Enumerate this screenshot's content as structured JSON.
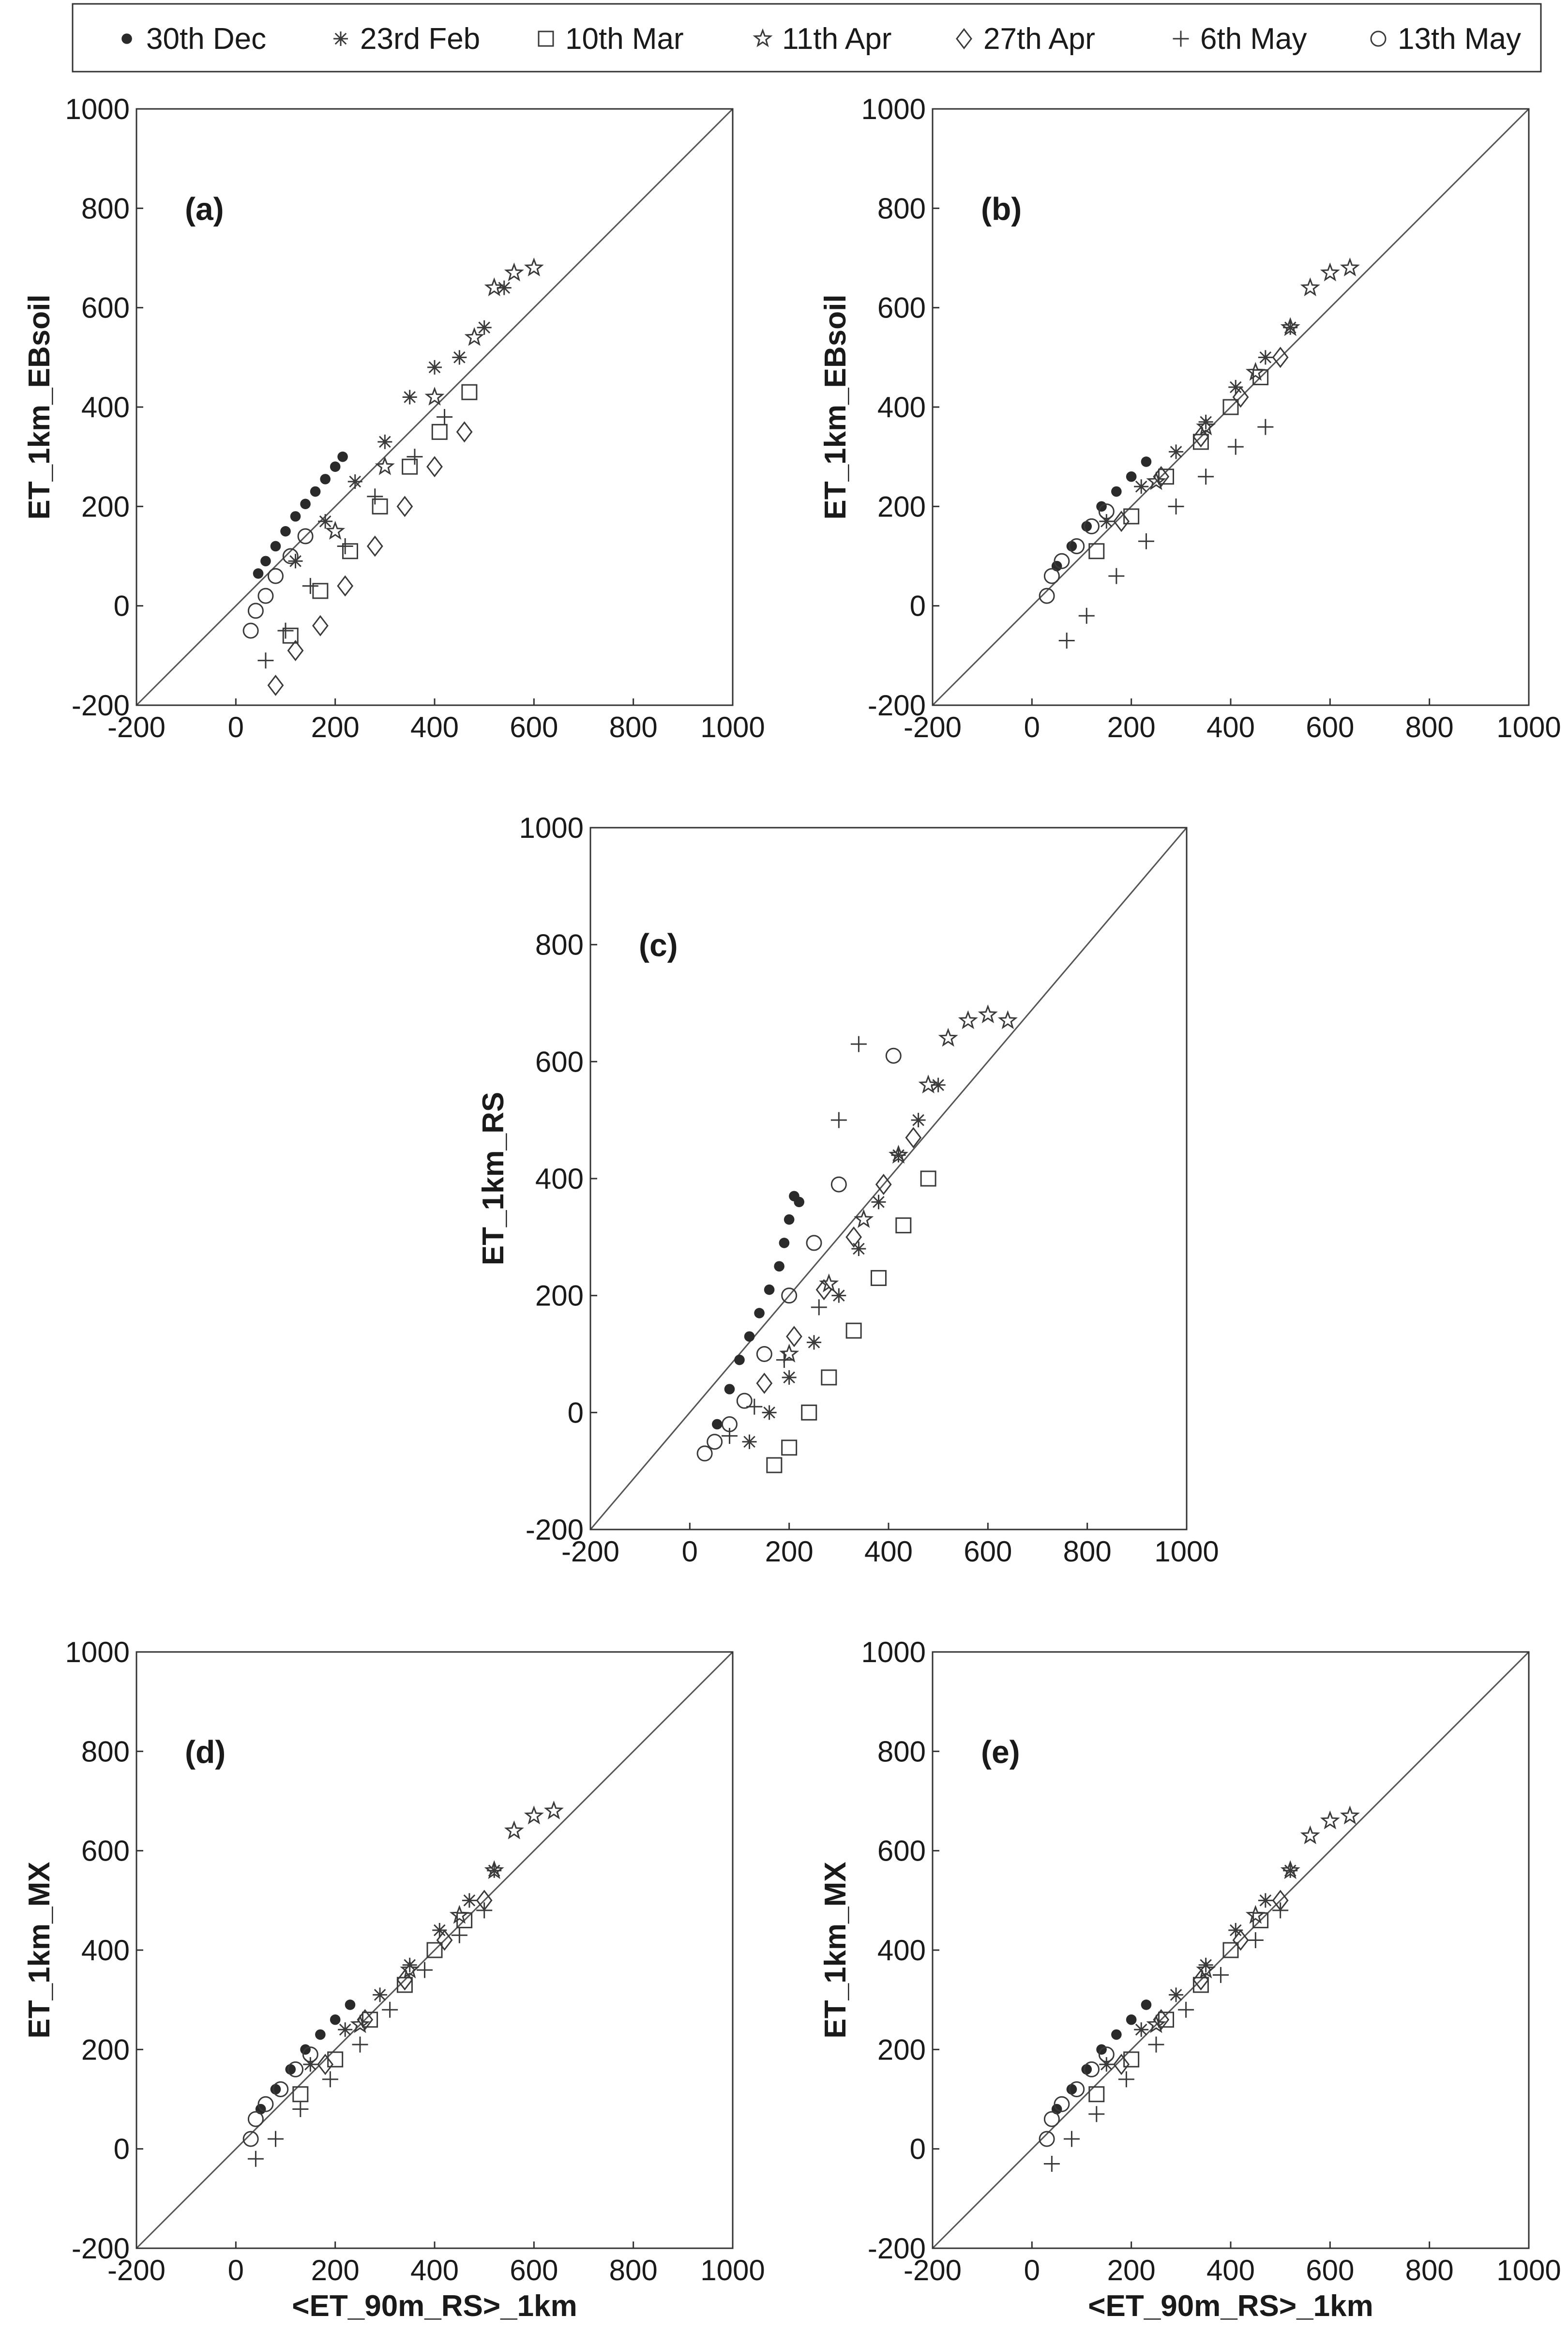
{
  "legend": {
    "entries": [
      {
        "label": "30th Dec",
        "marker": "filled-dot"
      },
      {
        "label": "23rd Feb",
        "marker": "asterisk"
      },
      {
        "label": "10th Mar",
        "marker": "square"
      },
      {
        "label": "11th Apr",
        "marker": "star"
      },
      {
        "label": "27th Apr",
        "marker": "diamond"
      },
      {
        "label": "6th May",
        "marker": "plus"
      },
      {
        "label": "13th May",
        "marker": "circle"
      }
    ]
  },
  "colors": {
    "marker": "#3a3a3a",
    "dot": "#2a2a2a",
    "axis": "#333333",
    "one_to_one": "#555555"
  },
  "chart_data": [
    {
      "type": "scatter",
      "panel": "(a)",
      "ylabel": "ET_1km_EBsoil",
      "xlabel": "",
      "xlim": [
        -200,
        1000
      ],
      "ylim": [
        -200,
        1000
      ],
      "xticks": [
        "-200",
        "0",
        "200",
        "400",
        "600",
        "800",
        "1000"
      ],
      "yticks": [
        "-200",
        "0",
        "200",
        "400",
        "600",
        "800",
        "1000"
      ],
      "one_to_one_line": true,
      "series": [
        {
          "name": "30th Dec",
          "x": [
            45,
            60,
            80,
            100,
            120,
            140,
            160,
            180,
            200,
            215
          ],
          "y": [
            65,
            90,
            120,
            150,
            180,
            205,
            230,
            255,
            280,
            300
          ]
        },
        {
          "name": "23rd Feb",
          "x": [
            120,
            180,
            240,
            300,
            350,
            400,
            450,
            500,
            540
          ],
          "y": [
            90,
            170,
            250,
            330,
            420,
            480,
            500,
            560,
            640
          ]
        },
        {
          "name": "10th Mar",
          "x": [
            110,
            170,
            230,
            290,
            350,
            410,
            470
          ],
          "y": [
            -60,
            30,
            110,
            200,
            280,
            350,
            430
          ]
        },
        {
          "name": "11th Apr",
          "x": [
            200,
            300,
            400,
            480,
            520,
            560,
            600
          ],
          "y": [
            150,
            280,
            420,
            540,
            640,
            670,
            680
          ]
        },
        {
          "name": "27th Apr",
          "x": [
            80,
            120,
            170,
            220,
            280,
            340,
            400,
            460
          ],
          "y": [
            -160,
            -90,
            -40,
            40,
            120,
            200,
            280,
            350
          ]
        },
        {
          "name": "6th May",
          "x": [
            60,
            100,
            150,
            220,
            280,
            360,
            420
          ],
          "y": [
            -110,
            -50,
            40,
            120,
            220,
            300,
            380
          ]
        },
        {
          "name": "13th May",
          "x": [
            30,
            40,
            60,
            80,
            110,
            140
          ],
          "y": [
            -50,
            -10,
            20,
            60,
            100,
            140
          ]
        }
      ]
    },
    {
      "type": "scatter",
      "panel": "(b)",
      "ylabel": "ET_1km_EBsoil",
      "xlabel": "",
      "xlim": [
        -200,
        1000
      ],
      "ylim": [
        -200,
        1000
      ],
      "xticks": [
        "-200",
        "0",
        "200",
        "400",
        "600",
        "800",
        "1000"
      ],
      "yticks": [
        "-200",
        "0",
        "200",
        "400",
        "600",
        "800",
        "1000"
      ],
      "one_to_one_line": true,
      "series": [
        {
          "name": "30th Dec",
          "x": [
            50,
            80,
            110,
            140,
            170,
            200,
            230
          ],
          "y": [
            80,
            120,
            160,
            200,
            230,
            260,
            290
          ]
        },
        {
          "name": "23rd Feb",
          "x": [
            150,
            220,
            290,
            350,
            410,
            470,
            520
          ],
          "y": [
            170,
            240,
            310,
            370,
            440,
            500,
            560
          ]
        },
        {
          "name": "10th Mar",
          "x": [
            130,
            200,
            270,
            340,
            400,
            460
          ],
          "y": [
            110,
            180,
            260,
            330,
            400,
            460
          ]
        },
        {
          "name": "11th Apr",
          "x": [
            250,
            350,
            450,
            520,
            560,
            600,
            640
          ],
          "y": [
            250,
            360,
            470,
            560,
            640,
            670,
            680
          ]
        },
        {
          "name": "27th Apr",
          "x": [
            180,
            260,
            340,
            420,
            500
          ],
          "y": [
            170,
            260,
            340,
            420,
            500
          ]
        },
        {
          "name": "6th May",
          "x": [
            70,
            110,
            170,
            230,
            290,
            350,
            410,
            470
          ],
          "y": [
            -70,
            -20,
            60,
            130,
            200,
            260,
            320,
            360
          ]
        },
        {
          "name": "13th May",
          "x": [
            30,
            40,
            60,
            90,
            120,
            150
          ],
          "y": [
            20,
            60,
            90,
            120,
            160,
            190
          ]
        }
      ]
    },
    {
      "type": "scatter",
      "panel": "(c)",
      "ylabel": "ET_1km_RS",
      "xlabel": "",
      "xlim": [
        -200,
        1000
      ],
      "ylim": [
        -200,
        1000
      ],
      "xticks": [
        "-200",
        "0",
        "200",
        "400",
        "600",
        "800",
        "1000"
      ],
      "yticks": [
        "-200",
        "0",
        "200",
        "400",
        "600",
        "800",
        "1000"
      ],
      "one_to_one_line": true,
      "series": [
        {
          "name": "30th Dec",
          "x": [
            55,
            80,
            100,
            120,
            140,
            160,
            180,
            190,
            200,
            210,
            220
          ],
          "y": [
            -20,
            40,
            90,
            130,
            170,
            210,
            250,
            290,
            330,
            370,
            360
          ]
        },
        {
          "name": "23rd Feb",
          "x": [
            120,
            160,
            200,
            250,
            300,
            340,
            380,
            420,
            460,
            500
          ],
          "y": [
            -50,
            0,
            60,
            120,
            200,
            280,
            360,
            440,
            500,
            560
          ]
        },
        {
          "name": "10th Mar",
          "x": [
            170,
            200,
            240,
            280,
            330,
            380,
            430,
            480
          ],
          "y": [
            -90,
            -60,
            0,
            60,
            140,
            230,
            320,
            400
          ]
        },
        {
          "name": "11th Apr",
          "x": [
            200,
            280,
            350,
            420,
            480,
            520,
            560,
            600,
            640
          ],
          "y": [
            100,
            220,
            330,
            440,
            560,
            640,
            670,
            680,
            670
          ]
        },
        {
          "name": "27th Apr",
          "x": [
            150,
            210,
            270,
            330,
            390,
            450
          ],
          "y": [
            50,
            130,
            210,
            300,
            390,
            470
          ]
        },
        {
          "name": "6th May",
          "x": [
            80,
            130,
            190,
            260,
            300,
            340
          ],
          "y": [
            -40,
            10,
            90,
            180,
            500,
            630
          ]
        },
        {
          "name": "13th May",
          "x": [
            30,
            50,
            80,
            110,
            150,
            200,
            250,
            300,
            410
          ],
          "y": [
            -70,
            -50,
            -20,
            20,
            100,
            200,
            290,
            390,
            610
          ]
        }
      ]
    },
    {
      "type": "scatter",
      "panel": "(d)",
      "ylabel": "ET_1km_MX",
      "xlabel": "<ET_90m_RS>_1km",
      "xlim": [
        -200,
        1000
      ],
      "ylim": [
        -200,
        1000
      ],
      "xticks": [
        "-200",
        "0",
        "200",
        "400",
        "600",
        "800",
        "1000"
      ],
      "yticks": [
        "-200",
        "0",
        "200",
        "400",
        "600",
        "800",
        "1000"
      ],
      "one_to_one_line": true,
      "series": [
        {
          "name": "30th Dec",
          "x": [
            50,
            80,
            110,
            140,
            170,
            200,
            230
          ],
          "y": [
            80,
            120,
            160,
            200,
            230,
            260,
            290
          ]
        },
        {
          "name": "23rd Feb",
          "x": [
            150,
            220,
            290,
            350,
            410,
            470,
            520
          ],
          "y": [
            170,
            240,
            310,
            370,
            440,
            500,
            560
          ]
        },
        {
          "name": "10th Mar",
          "x": [
            130,
            200,
            270,
            340,
            400,
            460
          ],
          "y": [
            110,
            180,
            260,
            330,
            400,
            460
          ]
        },
        {
          "name": "11th Apr",
          "x": [
            250,
            350,
            450,
            520,
            560,
            600,
            640
          ],
          "y": [
            250,
            360,
            470,
            560,
            640,
            670,
            680
          ]
        },
        {
          "name": "27th Apr",
          "x": [
            180,
            260,
            340,
            420,
            500
          ],
          "y": [
            170,
            260,
            340,
            420,
            500
          ]
        },
        {
          "name": "6th May",
          "x": [
            40,
            80,
            130,
            190,
            250,
            310,
            380,
            450,
            500
          ],
          "y": [
            -20,
            20,
            80,
            140,
            210,
            280,
            360,
            430,
            480
          ]
        },
        {
          "name": "13th May",
          "x": [
            30,
            40,
            60,
            90,
            120,
            150
          ],
          "y": [
            20,
            60,
            90,
            120,
            160,
            190
          ]
        }
      ]
    },
    {
      "type": "scatter",
      "panel": "(e)",
      "ylabel": "ET_1km_MX",
      "xlabel": "<ET_90m_RS>_1km",
      "xlim": [
        -200,
        1000
      ],
      "ylim": [
        -200,
        1000
      ],
      "xticks": [
        "-200",
        "0",
        "200",
        "400",
        "600",
        "800",
        "1000"
      ],
      "yticks": [
        "-200",
        "0",
        "200",
        "400",
        "600",
        "800",
        "1000"
      ],
      "one_to_one_line": true,
      "series": [
        {
          "name": "30th Dec",
          "x": [
            50,
            80,
            110,
            140,
            170,
            200,
            230
          ],
          "y": [
            80,
            120,
            160,
            200,
            230,
            260,
            290
          ]
        },
        {
          "name": "23rd Feb",
          "x": [
            150,
            220,
            290,
            350,
            410,
            470,
            520
          ],
          "y": [
            170,
            240,
            310,
            370,
            440,
            500,
            560
          ]
        },
        {
          "name": "10th Mar",
          "x": [
            130,
            200,
            270,
            340,
            400,
            460
          ],
          "y": [
            110,
            180,
            260,
            330,
            400,
            460
          ]
        },
        {
          "name": "11th Apr",
          "x": [
            250,
            350,
            450,
            520,
            560,
            600,
            640
          ],
          "y": [
            250,
            360,
            470,
            560,
            630,
            660,
            670
          ]
        },
        {
          "name": "27th Apr",
          "x": [
            180,
            260,
            340,
            420,
            500
          ],
          "y": [
            170,
            260,
            340,
            420,
            500
          ]
        },
        {
          "name": "6th May",
          "x": [
            40,
            80,
            130,
            190,
            250,
            310,
            380,
            450,
            500
          ],
          "y": [
            -30,
            20,
            70,
            140,
            210,
            280,
            350,
            420,
            480
          ]
        },
        {
          "name": "13th May",
          "x": [
            30,
            40,
            60,
            90,
            120,
            150
          ],
          "y": [
            20,
            60,
            90,
            120,
            160,
            190
          ]
        }
      ]
    }
  ]
}
